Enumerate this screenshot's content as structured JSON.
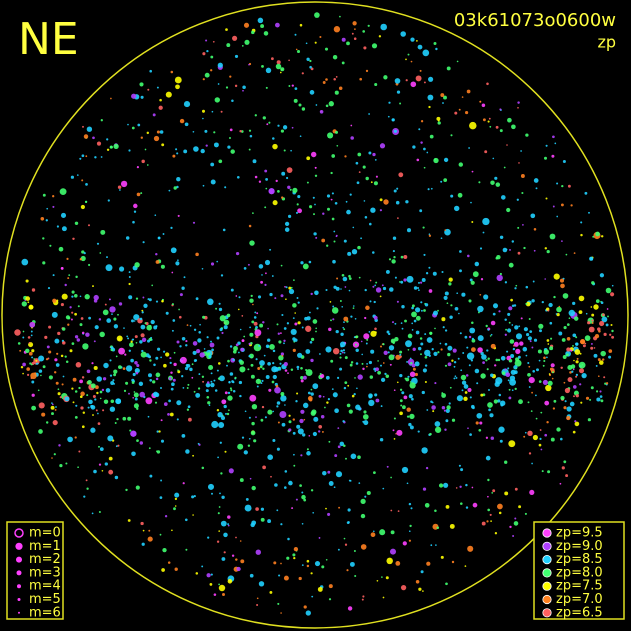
{
  "header": {
    "corner": "NE",
    "id": "03k61073o0600w",
    "mode": "zp"
  },
  "magnitude_legend": {
    "items": [
      {
        "label": "m=0"
      },
      {
        "label": "m=1"
      },
      {
        "label": "m=2"
      },
      {
        "label": "m=3"
      },
      {
        "label": "m=4"
      },
      {
        "label": "m=5"
      },
      {
        "label": "m=6"
      }
    ]
  },
  "zp_legend": {
    "items": [
      {
        "label": "zp=9.5",
        "color": "#ff40ff"
      },
      {
        "label": "zp=9.0",
        "color": "#b040ff"
      },
      {
        "label": "zp=8.5",
        "color": "#20d0ff"
      },
      {
        "label": "zp=8.0",
        "color": "#40ff70"
      },
      {
        "label": "zp=7.5",
        "color": "#ffff00"
      },
      {
        "label": "zp=7.0",
        "color": "#ff8020"
      },
      {
        "label": "zp=6.5",
        "color": "#ff6060"
      }
    ]
  }
}
